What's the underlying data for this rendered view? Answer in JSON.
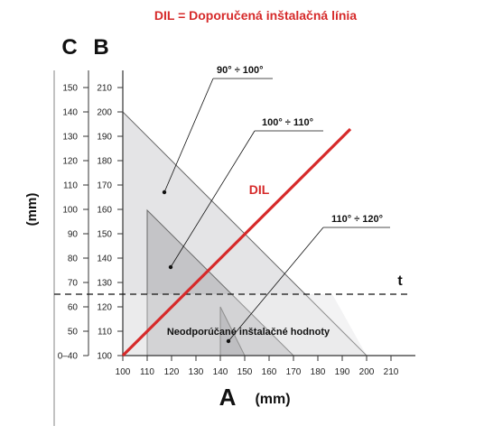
{
  "title": "DIL = Doporučená inštalačná línia",
  "axis_c_label": "C",
  "axis_b_label": "B",
  "y_unit": "(mm)",
  "x_axis_letter": "A",
  "x_unit": "(mm)",
  "dil_label": "DIL",
  "t_label": "t",
  "range_labels": [
    "90° ÷ 100°",
    "100° ÷ 110°",
    "110° ÷ 120°"
  ],
  "not_recommended_label": "Neodporúčané inštalačné hodnoty",
  "a_ticks": [
    "100",
    "110",
    "120",
    "130",
    "140",
    "150",
    "160",
    "170",
    "180",
    "190",
    "200",
    "210"
  ],
  "b_ticks": [
    "100",
    "110",
    "120",
    "130",
    "140",
    "150",
    "160",
    "170",
    "180",
    "190",
    "200",
    "210"
  ],
  "c_ticks": [
    "0–40",
    "50",
    "60",
    "70",
    "80",
    "90",
    "100",
    "110",
    "120",
    "130",
    "140",
    "150"
  ],
  "colors": {
    "dil_line": "#d62a2a",
    "title": "#d62a2a",
    "region_outer": "#e4e4e6",
    "region_middle": "#c4c4c7",
    "region_inner": "#a9a9ad",
    "below_t": "#efeff1"
  }
}
